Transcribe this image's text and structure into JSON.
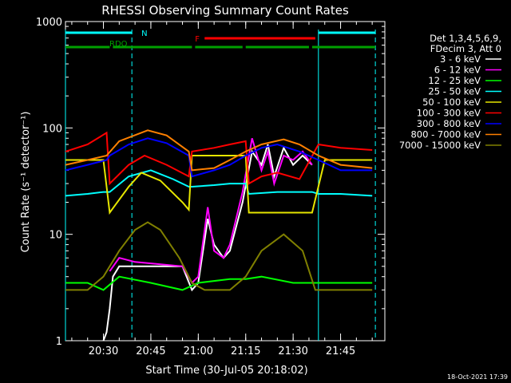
{
  "footer_timestamp": "18-Oct-2021 17:39",
  "chart_data": {
    "type": "line",
    "title": "RHESSI Observing Summary Count Rates",
    "xlabel": "Start Time (30-Jul-05 20:18:02)",
    "ylabel": "Count Rate (s⁻¹ detector⁻¹)",
    "y_scale": "log",
    "ylim": [
      1,
      1000
    ],
    "xlim": [
      "20:18",
      "21:59"
    ],
    "x_ticks": [
      "20:30",
      "20:45",
      "21:00",
      "21:15",
      "21:30",
      "21:45"
    ],
    "y_ticks": [
      "1",
      "10",
      "100",
      "1000"
    ],
    "legend_placement": "top-right",
    "legend_header": [
      "Det 1,3,4,5,6,9,",
      "FDecim 3, Att 0"
    ],
    "colors": {
      "3 - 6 keV": "#ffffff",
      "6 - 12 keV": "#ff00ff",
      "12 - 25 keV": "#00ff00",
      "25 - 50 keV": "#00ffff",
      "50 - 100 keV": "#e6e600",
      "100 - 300 keV": "#ff0000",
      "300 - 800 keV": "#0000ff",
      "800 - 7000 keV": "#ff8000",
      "7000 - 15000 keV": "#808000",
      "N": "#00ffff",
      "F": "#ff0000",
      "RDO": "#00a000"
    },
    "flag_bars": [
      {
        "label": "N",
        "color": "#00ffff",
        "segments": [
          [
            "20:18",
            "20:39"
          ],
          [
            "21:38",
            "21:56"
          ]
        ]
      },
      {
        "label": "F",
        "color": "#ff0000",
        "segments": [
          [
            "21:02",
            "21:37"
          ]
        ]
      },
      {
        "label": "RDO",
        "color": "#00a000",
        "segments": [
          [
            "20:18",
            "20:32"
          ],
          [
            "20:33",
            "20:58"
          ],
          [
            "20:59",
            "21:14"
          ],
          [
            "21:15",
            "21:35"
          ],
          [
            "21:36",
            "21:56"
          ]
        ]
      }
    ],
    "series": [
      {
        "name": "3 - 6 keV",
        "x": [
          "20:30",
          "20:31",
          "20:32",
          "20:33",
          "20:35",
          "20:40",
          "20:55",
          "20:58",
          "21:00",
          "21:03",
          "21:05",
          "21:08",
          "21:10",
          "21:14",
          "21:17",
          "21:20",
          "21:22",
          "21:24",
          "21:27",
          "21:30",
          "21:33",
          "21:36"
        ],
        "values": [
          1.0,
          1.2,
          2.0,
          4.0,
          5.0,
          5.0,
          5.0,
          3.0,
          3.5,
          14.0,
          8.0,
          6.0,
          7.0,
          20.0,
          60.0,
          45.0,
          70.0,
          35.0,
          65.0,
          45.0,
          55.0,
          45.0
        ]
      },
      {
        "name": "6 - 12 keV",
        "x": [
          "20:32",
          "20:35",
          "20:40",
          "20:55",
          "20:58",
          "21:00",
          "21:03",
          "21:05",
          "21:08",
          "21:10",
          "21:14",
          "21:17",
          "21:20",
          "21:22",
          "21:24",
          "21:27",
          "21:30",
          "21:33",
          "21:36"
        ],
        "values": [
          4.5,
          6.0,
          5.5,
          5.0,
          3.5,
          4.0,
          18.0,
          7.0,
          6.0,
          8.0,
          25.0,
          80.0,
          40.0,
          60.0,
          30.0,
          55.0,
          50.0,
          60.0,
          45.0
        ]
      },
      {
        "name": "12 - 25 keV",
        "x": [
          "20:18",
          "20:25",
          "20:30",
          "20:35",
          "20:45",
          "20:55",
          "21:00",
          "21:10",
          "21:15",
          "21:20",
          "21:30",
          "21:40",
          "21:50",
          "21:55"
        ],
        "values": [
          3.5,
          3.5,
          3.0,
          4.0,
          3.5,
          3.0,
          3.5,
          3.8,
          3.8,
          4.0,
          3.5,
          3.5,
          3.5,
          3.5
        ]
      },
      {
        "name": "25 - 50 keV",
        "x": [
          "20:18",
          "20:25",
          "20:30",
          "20:32",
          "20:38",
          "20:45",
          "20:52",
          "20:57",
          "20:58",
          "21:05",
          "21:10",
          "21:15",
          "21:16",
          "21:25",
          "21:30",
          "21:36",
          "21:38",
          "21:45",
          "21:55"
        ],
        "values": [
          23,
          24,
          25,
          25,
          35,
          40,
          33,
          28,
          28,
          29,
          30,
          30,
          24,
          25,
          25,
          25,
          24,
          24,
          23
        ]
      },
      {
        "name": "50 - 100 keV",
        "x": [
          "20:18",
          "20:25",
          "20:30",
          "20:32",
          "20:38",
          "20:42",
          "20:48",
          "20:55",
          "20:57",
          "20:58",
          "21:05",
          "21:10",
          "21:15",
          "21:16",
          "21:25",
          "21:30",
          "21:36",
          "21:40",
          "21:55"
        ],
        "values": [
          50,
          50,
          50,
          16,
          28,
          38,
          32,
          20,
          17,
          55,
          55,
          55,
          55,
          16,
          16,
          16,
          16,
          50,
          50
        ]
      },
      {
        "name": "100 - 300 keV",
        "x": [
          "20:18",
          "20:25",
          "20:31",
          "20:32",
          "20:38",
          "20:43",
          "20:50",
          "20:57",
          "20:58",
          "21:05",
          "21:10",
          "21:15",
          "21:16",
          "21:20",
          "21:25",
          "21:32",
          "21:38",
          "21:45",
          "21:55"
        ],
        "values": [
          60,
          70,
          90,
          30,
          45,
          55,
          45,
          35,
          60,
          65,
          70,
          75,
          30,
          35,
          38,
          33,
          70,
          65,
          62
        ]
      },
      {
        "name": "300 - 800 keV",
        "x": [
          "20:18",
          "20:25",
          "20:31",
          "20:32",
          "20:38",
          "20:44",
          "20:50",
          "20:57",
          "20:58",
          "21:05",
          "21:10",
          "21:15",
          "21:20",
          "21:25",
          "21:32",
          "21:38",
          "21:45",
          "21:55"
        ],
        "values": [
          40,
          45,
          50,
          55,
          70,
          80,
          72,
          55,
          35,
          40,
          45,
          55,
          65,
          70,
          60,
          50,
          40,
          40
        ]
      },
      {
        "name": "800 - 7000 keV",
        "x": [
          "20:18",
          "20:25",
          "20:31",
          "20:35",
          "20:44",
          "20:50",
          "20:57",
          "20:58",
          "21:05",
          "21:10",
          "21:15",
          "21:20",
          "21:27",
          "21:32",
          "21:38",
          "21:45",
          "21:55"
        ],
        "values": [
          45,
          50,
          55,
          75,
          95,
          85,
          60,
          40,
          42,
          50,
          60,
          70,
          78,
          70,
          55,
          45,
          42
        ]
      },
      {
        "name": "7000 - 15000 keV",
        "x": [
          "20:18",
          "20:25",
          "20:30",
          "20:35",
          "20:40",
          "20:44",
          "20:48",
          "20:54",
          "20:58",
          "21:02",
          "21:10",
          "21:15",
          "21:20",
          "21:27",
          "21:33",
          "21:37",
          "21:45",
          "21:55"
        ],
        "values": [
          3.0,
          3.0,
          4.0,
          7.0,
          11.0,
          13.0,
          11.0,
          6.0,
          3.5,
          3.0,
          3.0,
          4.0,
          7.0,
          10.0,
          7.0,
          3.0,
          3.0,
          3.0
        ]
      }
    ]
  }
}
